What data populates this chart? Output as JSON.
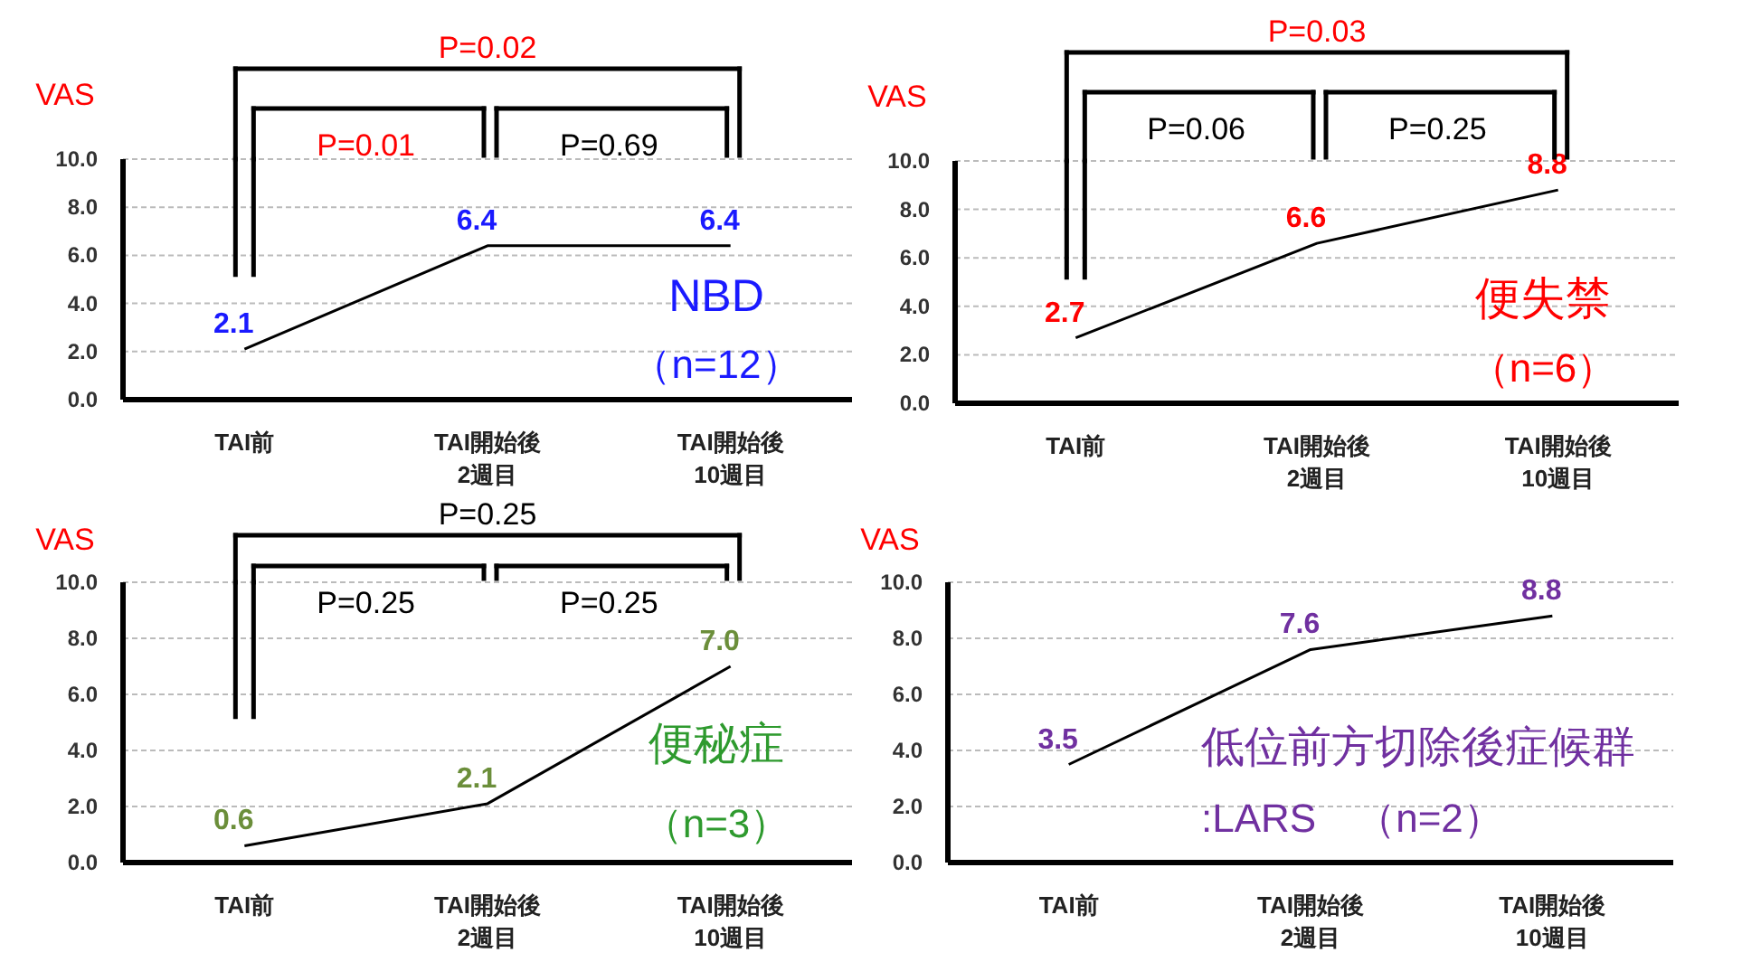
{
  "chart_data": [
    {
      "type": "line",
      "ylabel": "VAS",
      "categories": [
        "TAI前",
        "TAI開始後 2週目",
        "TAI開始後 10週目"
      ],
      "series": [
        {
          "color": "#000000",
          "values": [
            2.1,
            6.4,
            6.4
          ]
        }
      ],
      "ylim": [
        0,
        10
      ],
      "yticks": [
        {
          "value": 0,
          "label": "0.0"
        },
        {
          "value": 2,
          "label": "2.0"
        },
        {
          "value": 4,
          "label": "4.0"
        },
        {
          "value": 6,
          "label": "6.0"
        },
        {
          "value": 8,
          "label": "8.0"
        },
        {
          "value": 10,
          "label": "10.0"
        }
      ],
      "grid": "y",
      "data_labels": true,
      "marker": "none",
      "annotations": [
        "P=0.02",
        "P=0.01",
        "P=0.69",
        "NBD",
        "（n=12）"
      ]
    },
    {
      "type": "line",
      "ylabel": "VAS",
      "categories": [
        "TAI前",
        "TAI開始後 2週目",
        "TAI開始後 10週目"
      ],
      "series": [
        {
          "color": "#000000",
          "values": [
            2.7,
            6.6,
            8.8
          ]
        }
      ],
      "ylim": [
        0,
        10
      ],
      "yticks": [
        {
          "value": 0,
          "label": "0.0"
        },
        {
          "value": 2,
          "label": "2.0"
        },
        {
          "value": 4,
          "label": "4.0"
        },
        {
          "value": 6,
          "label": "6.0"
        },
        {
          "value": 8,
          "label": "8.0"
        },
        {
          "value": 10,
          "label": "10.0"
        }
      ],
      "grid": "y",
      "data_labels": true,
      "marker": "none",
      "annotations": [
        "P=0.03",
        "P=0.06",
        "P=0.25",
        "便失禁",
        "（n=6）"
      ]
    },
    {
      "type": "line",
      "ylabel": "VAS",
      "categories": [
        "TAI前",
        "TAI開始後 2週目",
        "TAI開始後 10週目"
      ],
      "series": [
        {
          "color": "#000000",
          "values": [
            0.6,
            2.1,
            7.0
          ],
          "value_labels": [
            "0.6",
            "2.1",
            "7.0"
          ]
        }
      ],
      "ylim": [
        0,
        10
      ],
      "yticks": [
        {
          "value": 0,
          "label": "0.0"
        },
        {
          "value": 2,
          "label": "2.0"
        },
        {
          "value": 4,
          "label": "4.0"
        },
        {
          "value": 6,
          "label": "6.0"
        },
        {
          "value": 8,
          "label": "8.0"
        },
        {
          "value": 10,
          "label": "10.0"
        }
      ],
      "grid": "y",
      "data_labels": true,
      "marker": "none",
      "annotations": [
        "P=0.25",
        "P=0.25",
        "P=0.25",
        "便秘症",
        "（n=3）"
      ]
    },
    {
      "type": "line",
      "ylabel": "VAS",
      "categories": [
        "TAI前",
        "TAI開始後 2週目",
        "TAI開始後 10週目"
      ],
      "series": [
        {
          "color": "#000000",
          "values": [
            3.5,
            7.6,
            8.8
          ]
        }
      ],
      "ylim": [
        0,
        10
      ],
      "yticks": [
        {
          "value": 0,
          "label": "0.0"
        },
        {
          "value": 2,
          "label": "2.0"
        },
        {
          "value": 4,
          "label": "4.0"
        },
        {
          "value": 6,
          "label": "6.0"
        },
        {
          "value": 8,
          "label": "8.0"
        },
        {
          "value": 10,
          "label": "10.0"
        }
      ],
      "grid": "y",
      "data_labels": true,
      "marker": "none",
      "annotations": [
        "低位前方切除後症候群",
        ":LARS　（n=2）"
      ]
    }
  ]
}
